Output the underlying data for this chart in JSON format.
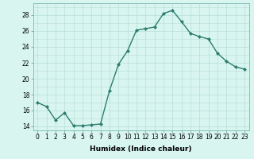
{
  "x": [
    0,
    1,
    2,
    3,
    4,
    5,
    6,
    7,
    8,
    9,
    10,
    11,
    12,
    13,
    14,
    15,
    16,
    17,
    18,
    19,
    20,
    21,
    22,
    23
  ],
  "y": [
    17.0,
    16.5,
    14.8,
    15.7,
    14.1,
    14.1,
    14.2,
    14.3,
    18.5,
    21.8,
    23.5,
    26.1,
    26.3,
    26.5,
    28.2,
    28.6,
    27.2,
    25.7,
    25.3,
    25.0,
    23.2,
    22.2,
    21.5,
    21.2
  ],
  "line_color": "#2e7d6e",
  "marker": "D",
  "marker_size": 2,
  "background_color": "#d8f5f0",
  "grid_color": "#b8ddd8",
  "xlabel": "Humidex (Indice chaleur)",
  "xlim": [
    -0.5,
    23.5
  ],
  "ylim": [
    13.5,
    29.5
  ],
  "yticks": [
    14,
    16,
    18,
    20,
    22,
    24,
    26,
    28
  ],
  "xticks": [
    0,
    1,
    2,
    3,
    4,
    5,
    6,
    7,
    8,
    9,
    10,
    11,
    12,
    13,
    14,
    15,
    16,
    17,
    18,
    19,
    20,
    21,
    22,
    23
  ],
  "xlabel_fontsize": 6.5,
  "tick_fontsize": 5.5,
  "line_width": 1.0
}
